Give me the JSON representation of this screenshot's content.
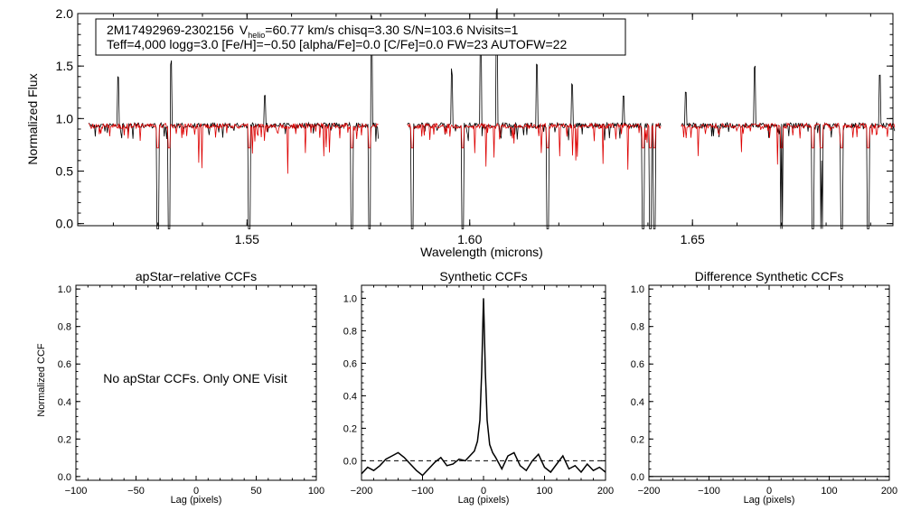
{
  "chart_data": [
    {
      "type": "line",
      "title": "",
      "xlabel": "Wavelength (microns)",
      "ylabel": "Normalized Flux",
      "xlim": [
        1.512,
        1.695
      ],
      "ylim": [
        -0.02,
        2.0
      ],
      "xticks": [
        1.55,
        1.6,
        1.65
      ],
      "xtick_labels": [
        "1.55",
        "1.60",
        "1.65"
      ],
      "yticks": [
        0.0,
        0.5,
        1.0,
        1.5,
        2.0
      ],
      "ytick_labels": [
        "0.0",
        "0.5",
        "1.0",
        "1.5",
        "2.0"
      ],
      "segments": [
        [
          1.5145,
          1.5795
        ],
        [
          1.586,
          1.643
        ],
        [
          1.6475,
          1.6955
        ]
      ],
      "series": [
        {
          "color": "#000000",
          "continuum": 0.96
        },
        {
          "color": "#dd0000",
          "continuum": 0.955
        }
      ],
      "legend_lines": [
        {
          "id": "2M17492969-2302156",
          "vsym": "V",
          "vsub": "helio",
          "vrest": "=60.77 km/s  chisq=3.30  S/N=103.6  Nvisits=1"
        },
        "Teff=4,000 logg=3.0 [Fe/H]=−0.50 [alpha/Fe]=0.0 [C/Fe]=0.0 FW=23 AUTOFW=22"
      ],
      "features": {
        "deep_absorption": [
          1.53,
          1.5325,
          1.5505,
          1.5735,
          1.5775,
          1.587,
          1.5985,
          1.6175,
          1.639,
          1.6405,
          1.6415,
          1.67,
          1.677,
          1.679,
          1.6835,
          1.6895
        ],
        "emission_spikes": [
          [
            1.521,
            0.45
          ],
          [
            1.533,
            0.6
          ],
          [
            1.554,
            0.3
          ],
          [
            1.578,
            1.05
          ],
          [
            1.596,
            0.55
          ],
          [
            1.6025,
            0.9
          ],
          [
            1.606,
            1.1
          ],
          [
            1.615,
            0.6
          ],
          [
            1.623,
            0.4
          ],
          [
            1.6345,
            0.3
          ],
          [
            1.6485,
            0.3
          ],
          [
            1.664,
            0.55
          ],
          [
            1.67,
            1.0
          ],
          [
            1.679,
            0.65
          ],
          [
            1.692,
            0.5
          ]
        ]
      }
    },
    {
      "type": "line",
      "title": "apStar−relative CCFs",
      "xlabel": "Lag (pixels)",
      "ylabel": "Normalized CCF",
      "xlim": [
        -100,
        100
      ],
      "ylim": [
        -0.02,
        1.02
      ],
      "xticks": [
        -100,
        -50,
        0,
        50,
        100
      ],
      "xtick_labels": [
        "−100",
        "−50",
        "0",
        "50",
        "100"
      ],
      "yticks": [
        0.0,
        0.2,
        0.4,
        0.6,
        0.8,
        1.0
      ],
      "ytick_labels": [
        "0.0",
        "0.2",
        "0.4",
        "0.6",
        "0.8",
        "1.0"
      ],
      "message": "No apStar CCFs.  Only ONE Visit",
      "series": []
    },
    {
      "type": "line",
      "title": "Synthetic CCFs",
      "xlabel": "Lag (pixels)",
      "ylabel": "",
      "xlim": [
        -200,
        200
      ],
      "ylim": [
        -0.12,
        1.08
      ],
      "xticks": [
        -200,
        -100,
        0,
        100,
        200
      ],
      "xtick_labels": [
        "−200",
        "−100",
        "0",
        "100",
        "200"
      ],
      "yticks": [
        0.0,
        0.2,
        0.4,
        0.6,
        0.8,
        1.0
      ],
      "ytick_labels": [
        "0.0",
        "0.2",
        "0.4",
        "0.6",
        "0.8",
        "1.0"
      ],
      "zero_line": "dashed",
      "series": [
        {
          "color": "#000000",
          "x": [
            -200,
            -190,
            -180,
            -170,
            -160,
            -150,
            -140,
            -130,
            -120,
            -110,
            -100,
            -90,
            -80,
            -70,
            -60,
            -50,
            -40,
            -30,
            -20,
            -15,
            -10,
            -6,
            -3,
            -1,
            0,
            1,
            3,
            6,
            10,
            15,
            20,
            30,
            40,
            50,
            60,
            70,
            80,
            90,
            100,
            110,
            120,
            130,
            140,
            150,
            160,
            170,
            180,
            190,
            200
          ],
          "y": [
            -0.08,
            -0.04,
            -0.06,
            -0.03,
            0.01,
            0.03,
            0.05,
            0.02,
            -0.02,
            -0.06,
            -0.09,
            -0.05,
            -0.01,
            0.02,
            -0.03,
            -0.02,
            0.01,
            0.0,
            0.04,
            0.06,
            0.12,
            0.25,
            0.55,
            0.85,
            1.0,
            0.85,
            0.55,
            0.25,
            0.1,
            0.05,
            0.02,
            -0.05,
            0.03,
            0.05,
            -0.03,
            -0.06,
            0.0,
            0.04,
            -0.04,
            -0.07,
            -0.02,
            0.03,
            -0.05,
            -0.03,
            -0.07,
            -0.02,
            -0.06,
            -0.04,
            -0.07
          ]
        }
      ]
    },
    {
      "type": "line",
      "title": "Difference Synthetic CCFs",
      "xlabel": "Lag (pixels)",
      "ylabel": "",
      "xlim": [
        -200,
        200
      ],
      "ylim": [
        -0.02,
        1.02
      ],
      "xticks": [
        -200,
        -100,
        0,
        100,
        200
      ],
      "xtick_labels": [
        "−200",
        "−100",
        "0",
        "100",
        "200"
      ],
      "yticks": [
        0.0,
        0.2,
        0.4,
        0.6,
        0.8,
        1.0
      ],
      "ytick_labels": [
        "0.0",
        "0.2",
        "0.4",
        "0.6",
        "0.8",
        "1.0"
      ],
      "series": [
        {
          "color": "#000000",
          "x": [
            -200,
            200
          ],
          "y": [
            0.0,
            0.0
          ]
        }
      ]
    }
  ]
}
